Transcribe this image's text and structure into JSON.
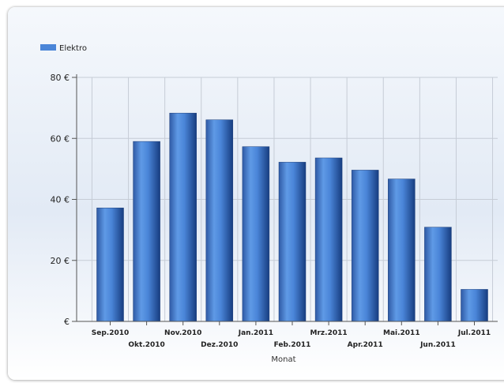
{
  "chart_data": {
    "type": "bar",
    "title": "",
    "xlabel": "Monat",
    "ylabel": "",
    "ylim": [
      0,
      80
    ],
    "y_ticks": [
      0,
      20,
      40,
      60,
      80
    ],
    "y_tick_labels": [
      "€",
      "20 €",
      "40 €",
      "60 €",
      "80 €"
    ],
    "categories": [
      "Sep.2010",
      "Okt.2010",
      "Nov.2010",
      "Dez.2010",
      "Jan.2011",
      "Feb.2011",
      "Mrz.2011",
      "Apr.2011",
      "Mai.2011",
      "Jun.2011",
      "Jul.2011"
    ],
    "series": [
      {
        "name": "Elektro",
        "color": "#4a85d8",
        "values": [
          37.2,
          59.0,
          68.3,
          66.1,
          57.3,
          52.2,
          53.6,
          49.6,
          46.7,
          30.9,
          10.5
        ]
      }
    ],
    "grid": true,
    "legend_position": "top-left"
  }
}
